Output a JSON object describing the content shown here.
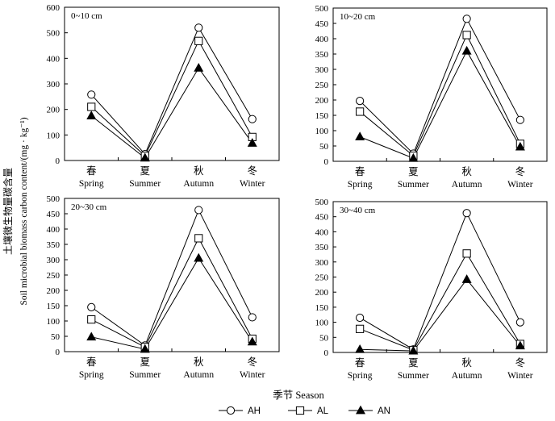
{
  "figure": {
    "ylabel_cn": "土壤微生物量碳含量",
    "ylabel_en": "Soil microbial biomass carbon content/(mg · kg⁻¹)",
    "xlabel": "季节 Season"
  },
  "legend": [
    {
      "name": "AH",
      "marker": "circle-open"
    },
    {
      "name": "AL",
      "marker": "square-open"
    },
    {
      "name": "AN",
      "marker": "triangle-filled"
    }
  ],
  "chart_data": [
    {
      "type": "line",
      "title": "0~10 cm",
      "categories_cn": [
        "春",
        "夏",
        "秋",
        "冬"
      ],
      "categories": [
        "Spring",
        "Summer",
        "Autumn",
        "Winter"
      ],
      "ylim": [
        0,
        600
      ],
      "yticks": [
        0,
        100,
        200,
        300,
        400,
        500,
        600
      ],
      "series": [
        {
          "name": "AH",
          "values": [
            258,
            25,
            520,
            162
          ]
        },
        {
          "name": "AL",
          "values": [
            210,
            18,
            468,
            92
          ]
        },
        {
          "name": "AN",
          "values": [
            175,
            10,
            362,
            68
          ]
        }
      ]
    },
    {
      "type": "line",
      "title": "10~20 cm",
      "categories_cn": [
        "春",
        "夏",
        "秋",
        "冬"
      ],
      "categories": [
        "Spring",
        "Summer",
        "Autumn",
        "Winter"
      ],
      "ylim": [
        0,
        500
      ],
      "yticks": [
        0,
        50,
        100,
        150,
        200,
        250,
        300,
        350,
        400,
        450,
        500
      ],
      "series": [
        {
          "name": "AH",
          "values": [
            197,
            25,
            465,
            135
          ]
        },
        {
          "name": "AL",
          "values": [
            162,
            18,
            412,
            57
          ]
        },
        {
          "name": "AN",
          "values": [
            80,
            10,
            360,
            47
          ]
        }
      ]
    },
    {
      "type": "line",
      "title": "20~30 cm",
      "categories_cn": [
        "春",
        "夏",
        "秋",
        "冬"
      ],
      "categories": [
        "Spring",
        "Summer",
        "Autumn",
        "Winter"
      ],
      "ylim": [
        0,
        500
      ],
      "yticks": [
        0,
        50,
        100,
        150,
        200,
        250,
        300,
        350,
        400,
        450,
        500
      ],
      "series": [
        {
          "name": "AH",
          "values": [
            145,
            20,
            462,
            112
          ]
        },
        {
          "name": "AL",
          "values": [
            105,
            15,
            370,
            42
          ]
        },
        {
          "name": "AN",
          "values": [
            48,
            8,
            305,
            32
          ]
        }
      ]
    },
    {
      "type": "line",
      "title": "30~40 cm",
      "categories_cn": [
        "春",
        "夏",
        "秋",
        "冬"
      ],
      "categories": [
        "Spring",
        "Summer",
        "Autumn",
        "Winter"
      ],
      "ylim": [
        0,
        500
      ],
      "yticks": [
        0,
        50,
        100,
        150,
        200,
        250,
        300,
        350,
        400,
        450,
        500
      ],
      "series": [
        {
          "name": "AH",
          "values": [
            115,
            10,
            462,
            100
          ]
        },
        {
          "name": "AL",
          "values": [
            78,
            8,
            328,
            28
          ]
        },
        {
          "name": "AN",
          "values": [
            10,
            5,
            242,
            22
          ]
        }
      ]
    }
  ]
}
